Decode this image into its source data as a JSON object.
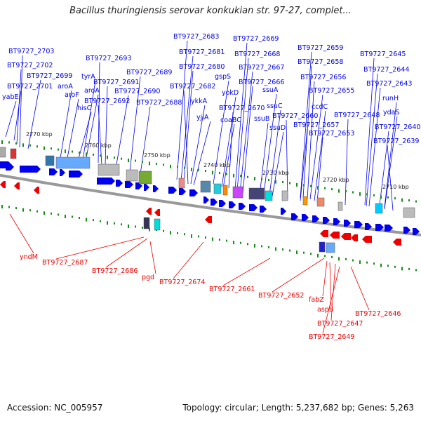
{
  "title": "Bacillus thuringiensis serovar konkukian str. 97-27, complet...",
  "footer": {
    "accession": "Accession: NC_005957",
    "summary": "Topology: circular; Length: 5,237,682 bp; Genes: 5,263"
  },
  "colors": {
    "forward": "#0000ee",
    "reverse": "#ee0000",
    "tick": "#1a8a1a",
    "backbone": "#888888"
  },
  "scale_labels": [
    "2770 kbp",
    "2760 kbp",
    "2750 kbp",
    "2740 kbp",
    "2730 kbp",
    "2720 kbp",
    "2710 kbp"
  ],
  "forward_genes": [
    "yabE",
    "BT9727_2701",
    "BT9727_2702",
    "BT9727_2703",
    "BT9727_2699",
    "aroA",
    "aroF",
    "hisC",
    "tyrA",
    "aroA",
    "BT9727_2693",
    "BT9727_2691",
    "BT9727_2692",
    "BT9727_2690",
    "BT9727_2689",
    "BT9727_2688",
    "BT9727_2683",
    "BT9727_2681",
    "BT9727_2680",
    "BT9727_2682",
    "ykkA",
    "yjlA",
    "gspS",
    "yokD",
    "coaBC",
    "BT9727_2670",
    "BT9727_2669",
    "BT9727_2668",
    "BT9727_2667",
    "BT9727_2666",
    "ssuA",
    "ssuC",
    "ssuB",
    "ssuD",
    "BT9727_2659",
    "BT9727_2658",
    "BT9727_2656",
    "BT9727_2655",
    "ccdC",
    "BT9727_2660",
    "BT9727_2657",
    "BT9727_2653",
    "BT9727_2645",
    "BT9727_2644",
    "BT9727_2643",
    "runH",
    "ydaS",
    "BT9727_2648",
    "BT9727_2640",
    "BT9727_2639"
  ],
  "reverse_genes": [
    "yndM",
    "BT9727_2687",
    "BT9727_2686",
    "pgd",
    "BT9727_2674",
    "BT9727_2661",
    "BT9727_2652",
    "fabZ",
    "aspB",
    "BT9727_2647",
    "BT9727_2649",
    "BT9727_2646"
  ]
}
